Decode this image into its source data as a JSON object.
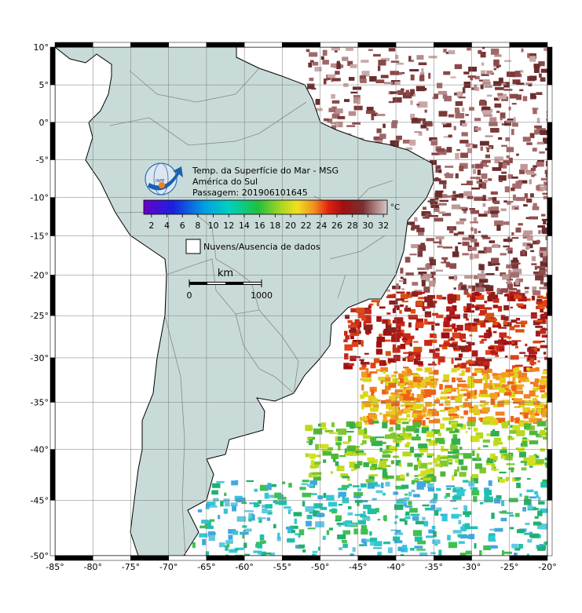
{
  "map": {
    "title_lines": [
      "Temp. da Superfície do Mar - MSG",
      "América do Sul",
      "Passagem: 201906101645"
    ],
    "logo_text": "INPE",
    "colorbar": {
      "unit": "°C",
      "lim": [
        1,
        32.5
      ],
      "ticks": [
        2,
        4,
        6,
        8,
        10,
        12,
        14,
        16,
        18,
        20,
        22,
        24,
        26,
        28,
        30,
        32
      ]
    },
    "legend": "Nuvens/Ausencia de dados",
    "scale_bar": {
      "unit": "km",
      "ticks": [
        0,
        1000
      ]
    },
    "lon_ticks": [
      {
        "value": -85,
        "label": "-85°"
      },
      {
        "value": -80,
        "label": "-80°"
      },
      {
        "value": -75,
        "label": "-75°"
      },
      {
        "value": -70,
        "label": "-70°"
      },
      {
        "value": -65,
        "label": "-65°"
      },
      {
        "value": -60,
        "label": "-60°"
      },
      {
        "value": -55,
        "label": "-55°"
      },
      {
        "value": -50,
        "label": "-50°"
      },
      {
        "value": -45,
        "label": "-45°"
      },
      {
        "value": -40,
        "label": "-40°"
      },
      {
        "value": -35,
        "label": "-35°"
      },
      {
        "value": -30,
        "label": "-30°"
      },
      {
        "value": -25,
        "label": "-25°"
      },
      {
        "value": -20,
        "label": "-20°"
      }
    ],
    "lat_ticks": [
      {
        "value": 10,
        "label": "10°"
      },
      {
        "value": 5,
        "label": "5°"
      },
      {
        "value": 0,
        "label": "0°"
      },
      {
        "value": -5,
        "label": "-5°"
      },
      {
        "value": -10,
        "label": "-10°"
      },
      {
        "value": -15,
        "label": "-15°"
      },
      {
        "value": -20,
        "label": "-20°"
      },
      {
        "value": -25,
        "label": "-25°"
      },
      {
        "value": -30,
        "label": "-30°"
      },
      {
        "value": -35,
        "label": "-35°"
      },
      {
        "value": -40,
        "label": "-40°"
      },
      {
        "value": -45,
        "label": "-45°"
      },
      {
        "value": -50,
        "label": "-50°"
      }
    ]
  }
}
